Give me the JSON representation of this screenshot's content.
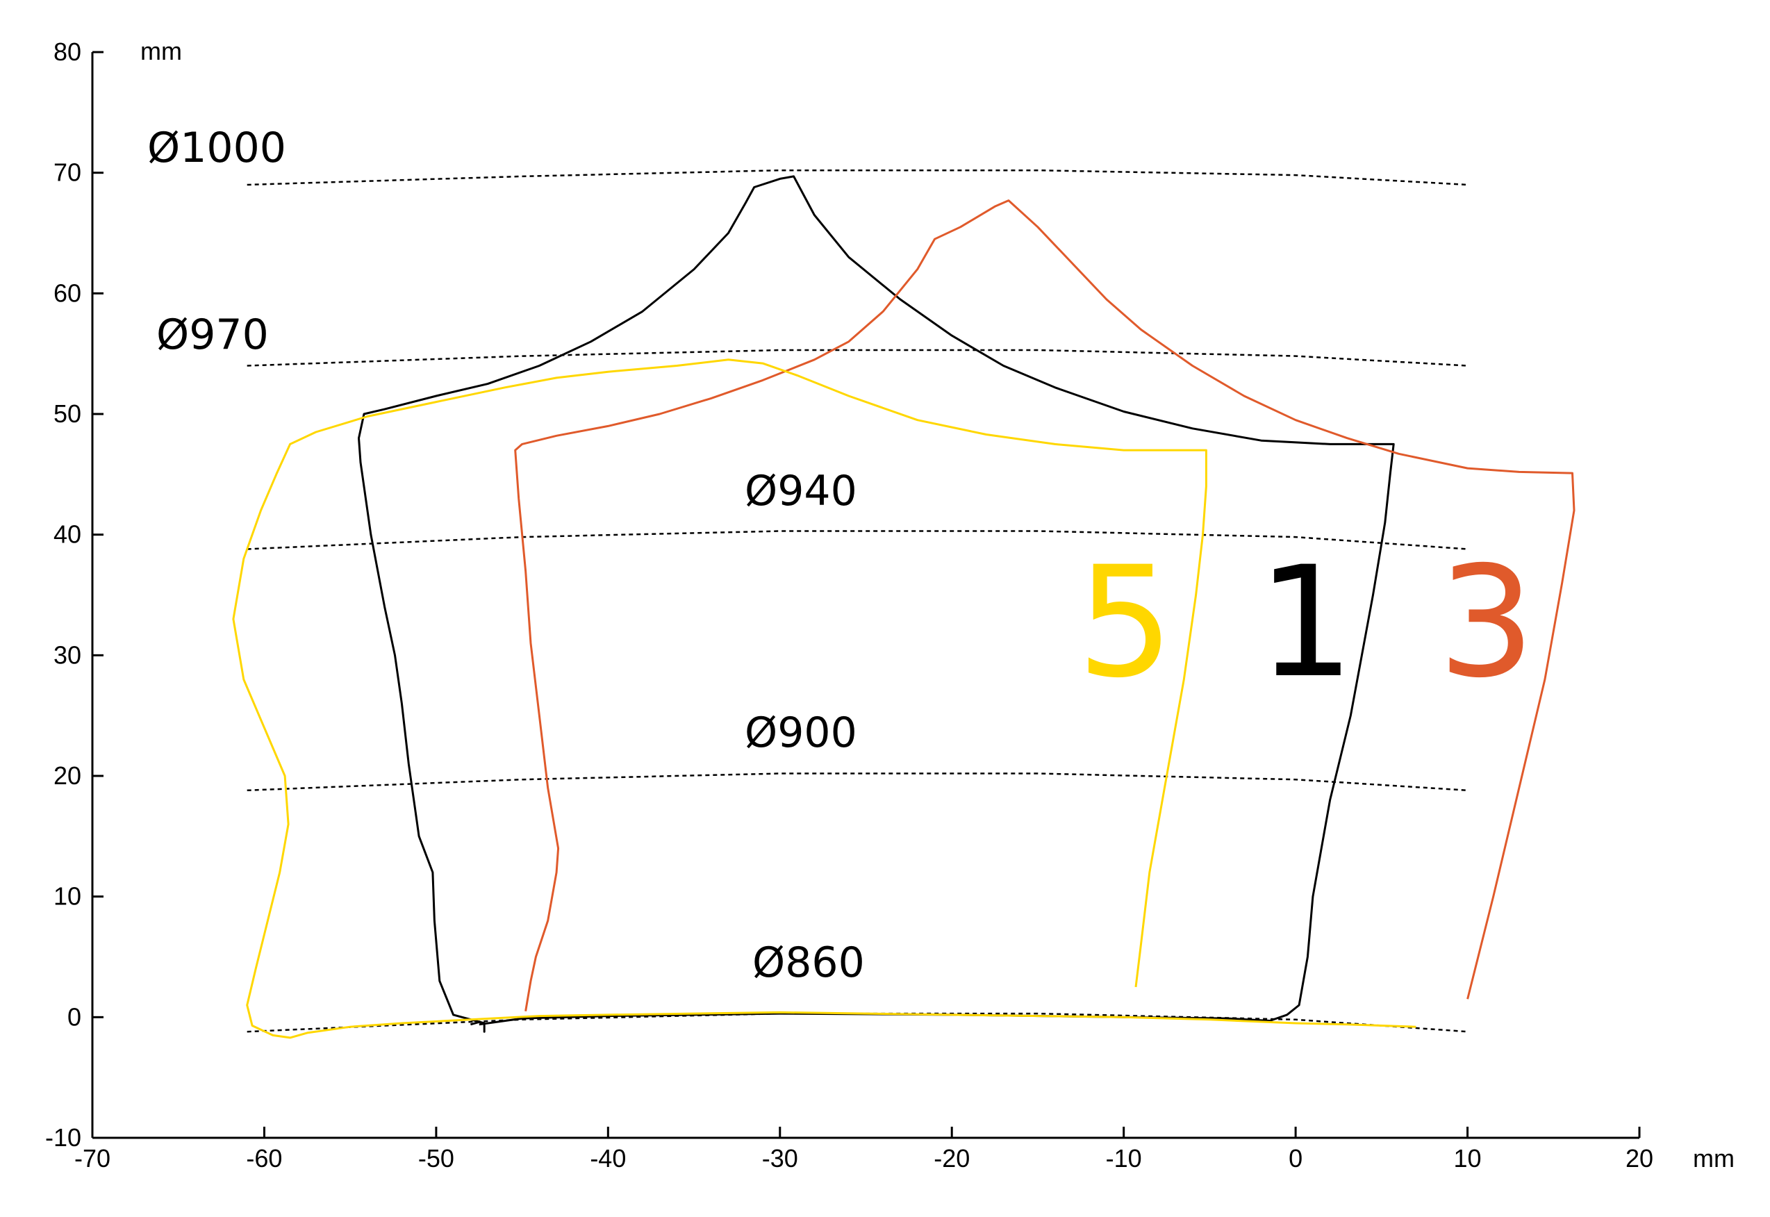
{
  "chart_data": {
    "type": "line",
    "units": {
      "x": "mm",
      "y": "mm"
    },
    "xlim": [
      -70,
      20
    ],
    "ylim": [
      -10,
      80
    ],
    "xticks": [
      -70,
      -60,
      -50,
      -40,
      -30,
      -20,
      -10,
      0,
      10,
      20
    ],
    "yticks": [
      -10,
      0,
      10,
      20,
      30,
      40,
      50,
      60,
      70,
      80
    ],
    "xtick_labels": [
      "-70",
      "-60",
      "-50",
      "-40",
      "-30",
      "-20",
      "-10",
      "0",
      "10",
      "20"
    ],
    "ytick_labels": [
      "-10",
      "0",
      "10",
      "20",
      "30",
      "40",
      "50",
      "60",
      "70",
      "80"
    ],
    "grid": false,
    "reference_lines": [
      {
        "label": "Ø1000",
        "points": [
          [
            -61,
            69
          ],
          [
            -45,
            69.7
          ],
          [
            -30,
            70.2
          ],
          [
            -15,
            70.2
          ],
          [
            0,
            69.8
          ],
          [
            10,
            69
          ]
        ]
      },
      {
        "label": "Ø970",
        "points": [
          [
            -61,
            54
          ],
          [
            -45,
            54.8
          ],
          [
            -30,
            55.3
          ],
          [
            -15,
            55.3
          ],
          [
            0,
            54.8
          ],
          [
            10,
            54
          ]
        ]
      },
      {
        "label": "Ø940",
        "points": [
          [
            -61,
            38.8
          ],
          [
            -45,
            39.8
          ],
          [
            -30,
            40.3
          ],
          [
            -15,
            40.3
          ],
          [
            0,
            39.8
          ],
          [
            10,
            38.8
          ]
        ]
      },
      {
        "label": "Ø900",
        "points": [
          [
            -61,
            18.8
          ],
          [
            -45,
            19.7
          ],
          [
            -30,
            20.2
          ],
          [
            -15,
            20.2
          ],
          [
            0,
            19.7
          ],
          [
            10,
            18.8
          ]
        ]
      },
      {
        "label": "Ø860",
        "points": [
          [
            -61,
            -1.2
          ],
          [
            -45,
            -0.2
          ],
          [
            -30,
            0.3
          ],
          [
            -15,
            0.3
          ],
          [
            0,
            -0.2
          ],
          [
            10,
            -1.2
          ]
        ]
      }
    ],
    "series": [
      {
        "name": "1",
        "color": "#000000",
        "points": [
          [
            -48,
            -0.6
          ],
          [
            -47.5,
            -0.4
          ],
          [
            -47.2,
            -0.5
          ],
          [
            -47.2,
            -1.2
          ],
          [
            -47.2,
            -0.5
          ],
          [
            -49,
            0.2
          ],
          [
            -49.8,
            3
          ],
          [
            -50.1,
            8
          ],
          [
            -50.2,
            12
          ],
          [
            -51,
            15
          ],
          [
            -51.2,
            17
          ],
          [
            -51.6,
            21
          ],
          [
            -52,
            26
          ],
          [
            -52.4,
            30
          ],
          [
            -53,
            34
          ],
          [
            -53.8,
            40
          ],
          [
            -54.4,
            46
          ],
          [
            -54.5,
            48
          ],
          [
            -54.2,
            50
          ],
          [
            -53,
            50.4
          ],
          [
            -50,
            51.5
          ],
          [
            -47,
            52.5
          ],
          [
            -44,
            54
          ],
          [
            -41,
            56
          ],
          [
            -38,
            58.5
          ],
          [
            -35,
            62
          ],
          [
            -33,
            65
          ],
          [
            -32,
            67.5
          ],
          [
            -31.5,
            68.8
          ],
          [
            -30,
            69.5
          ],
          [
            -29.2,
            69.7
          ],
          [
            -28,
            66.5
          ],
          [
            -26,
            63
          ],
          [
            -23,
            59.5
          ],
          [
            -20,
            56.5
          ],
          [
            -17,
            54
          ],
          [
            -14,
            52.2
          ],
          [
            -10,
            50.2
          ],
          [
            -6,
            48.8
          ],
          [
            -2,
            47.8
          ],
          [
            2,
            47.5
          ],
          [
            5.7,
            47.5
          ],
          [
            5.5,
            45
          ],
          [
            5.2,
            41
          ],
          [
            4.5,
            35
          ],
          [
            3.2,
            25
          ],
          [
            2,
            18
          ],
          [
            1,
            10
          ],
          [
            0.7,
            5
          ],
          [
            0.2,
            1
          ],
          [
            -0.5,
            0.2
          ],
          [
            -1.5,
            -0.3
          ],
          [
            -4,
            -0.1
          ],
          [
            -10,
            0
          ],
          [
            -20,
            0.2
          ],
          [
            -30,
            0.3
          ],
          [
            -40,
            0.1
          ],
          [
            -45,
            -0.1
          ],
          [
            -47.5,
            -0.6
          ]
        ]
      },
      {
        "name": "3",
        "color": "#e05a2b",
        "points": [
          [
            -44.8,
            0.5
          ],
          [
            -44.5,
            3
          ],
          [
            -44.2,
            5
          ],
          [
            -43.5,
            8
          ],
          [
            -43,
            12
          ],
          [
            -42.9,
            14
          ],
          [
            -43.5,
            19
          ],
          [
            -44,
            25
          ],
          [
            -44.5,
            31
          ],
          [
            -44.8,
            37
          ],
          [
            -45.2,
            43
          ],
          [
            -45.4,
            47
          ],
          [
            -45,
            47.5
          ],
          [
            -43,
            48.2
          ],
          [
            -40,
            49
          ],
          [
            -37,
            50
          ],
          [
            -34,
            51.3
          ],
          [
            -31,
            52.8
          ],
          [
            -28,
            54.5
          ],
          [
            -26,
            56
          ],
          [
            -24,
            58.5
          ],
          [
            -22,
            62
          ],
          [
            -21,
            64.5
          ],
          [
            -19.5,
            65.5
          ],
          [
            -17.5,
            67.2
          ],
          [
            -16.7,
            67.7
          ],
          [
            -15,
            65.5
          ],
          [
            -13,
            62.5
          ],
          [
            -11,
            59.5
          ],
          [
            -9,
            57
          ],
          [
            -6,
            54
          ],
          [
            -3,
            51.5
          ],
          [
            0,
            49.5
          ],
          [
            3,
            48
          ],
          [
            6,
            46.7
          ],
          [
            10,
            45.5
          ],
          [
            13,
            45.2
          ],
          [
            16.1,
            45.1
          ],
          [
            16.2,
            42
          ],
          [
            15.5,
            36
          ],
          [
            14.5,
            28
          ],
          [
            13,
            19
          ],
          [
            11.5,
            10
          ],
          [
            10,
            1.5
          ]
        ]
      },
      {
        "name": "5",
        "color": "#ffd700",
        "points": [
          [
            -9.3,
            2.5
          ],
          [
            -9,
            6
          ],
          [
            -8.5,
            12
          ],
          [
            -7.5,
            20
          ],
          [
            -6.5,
            28
          ],
          [
            -5.8,
            35
          ],
          [
            -5.4,
            40
          ],
          [
            -5.2,
            44
          ],
          [
            -5.2,
            47
          ],
          [
            -10,
            47
          ],
          [
            -14,
            47.5
          ],
          [
            -18,
            48.3
          ],
          [
            -22,
            49.5
          ],
          [
            -26,
            51.5
          ],
          [
            -29,
            53.2
          ],
          [
            -31,
            54.2
          ],
          [
            -33,
            54.5
          ],
          [
            -36,
            54
          ],
          [
            -40,
            53.5
          ],
          [
            -43,
            53
          ],
          [
            -46,
            52.2
          ],
          [
            -50,
            51
          ],
          [
            -54,
            49.8
          ],
          [
            -57,
            48.5
          ],
          [
            -58.5,
            47.5
          ],
          [
            -59.3,
            45
          ],
          [
            -60.2,
            42
          ],
          [
            -61.2,
            38
          ],
          [
            -61.8,
            33
          ],
          [
            -61.2,
            28
          ],
          [
            -60,
            24
          ],
          [
            -58.8,
            20
          ],
          [
            -58.6,
            16
          ],
          [
            -59.1,
            12
          ],
          [
            -59.8,
            8
          ],
          [
            -60.5,
            4
          ],
          [
            -61,
            1
          ],
          [
            -60.7,
            -0.7
          ],
          [
            -59.5,
            -1.5
          ],
          [
            -58.5,
            -1.7
          ],
          [
            -57.5,
            -1.3
          ],
          [
            -55,
            -0.8
          ],
          [
            -52,
            -0.5
          ],
          [
            -48,
            -0.2
          ],
          [
            -44,
            0.1
          ],
          [
            -40,
            0.2
          ],
          [
            -35,
            0.3
          ],
          [
            -30,
            0.4
          ],
          [
            -25,
            0.3
          ],
          [
            -20,
            0.2
          ],
          [
            -15,
            0.1
          ],
          [
            -10,
            0
          ],
          [
            -5,
            -0.2
          ],
          [
            0,
            -0.5
          ],
          [
            3,
            -0.6
          ],
          [
            7,
            -0.8
          ]
        ]
      }
    ],
    "series_labels": [
      "5",
      "1",
      "3"
    ]
  }
}
